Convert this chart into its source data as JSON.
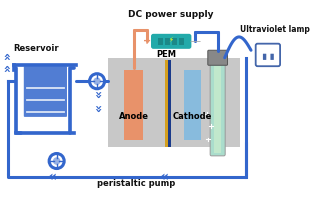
{
  "blue": "#3366CC",
  "blue_dark": "#2255BB",
  "teal": "#22AAAA",
  "orange": "#E8926A",
  "gray_cell": "#C8C8C8",
  "pem_gold": "#D4A020",
  "pem_dark": "#1A3A8A",
  "cathode_blue": "#88BBDD",
  "uv_green": "#AADDCC",
  "uv_glass": "#BBCCDD",
  "socket_blue": "#4466AA",
  "text_dark": "#111111",
  "labels": {
    "dc": "DC power supply",
    "reservoir": "Reservoir",
    "uv": "Ultraviolet lamp",
    "anode": "Anode",
    "cathode": "Cathode",
    "pem": "PEM",
    "pump": "peristaltic pump"
  }
}
